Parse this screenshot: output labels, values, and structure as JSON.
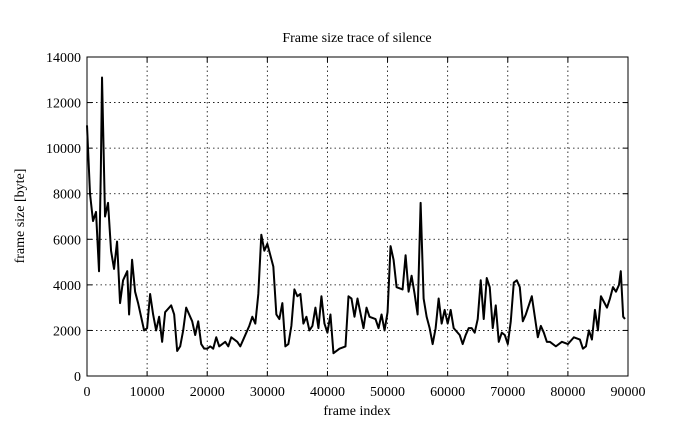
{
  "chart_data": {
    "type": "line",
    "title": "Frame size trace of silence",
    "xlabel": "frame index",
    "ylabel": "frame size [byte]",
    "color": "#000000",
    "grid": true,
    "xlim": [
      0,
      90000
    ],
    "ylim": [
      0,
      14000
    ],
    "xticks": [
      0,
      10000,
      20000,
      30000,
      40000,
      50000,
      60000,
      70000,
      80000,
      90000
    ],
    "yticks": [
      0,
      2000,
      4000,
      6000,
      8000,
      10000,
      12000,
      14000
    ],
    "x": [
      0,
      500,
      1000,
      1500,
      2000,
      2300,
      2500,
      3000,
      3500,
      4000,
      4500,
      5000,
      5500,
      6000,
      6700,
      7000,
      7500,
      8000,
      8500,
      9500,
      10000,
      10500,
      11000,
      11500,
      12000,
      12500,
      13000,
      14000,
      14500,
      15000,
      15500,
      16000,
      16500,
      17000,
      17500,
      18000,
      18500,
      19000,
      19500,
      20000,
      20500,
      21000,
      21500,
      22000,
      23000,
      23500,
      24000,
      25000,
      25500,
      26000,
      27000,
      27500,
      28000,
      28500,
      29000,
      29500,
      30000,
      30500,
      31000,
      31500,
      32000,
      32500,
      33000,
      33500,
      34000,
      34500,
      35000,
      35500,
      36000,
      36500,
      37000,
      37500,
      38000,
      38500,
      39000,
      39500,
      40000,
      40500,
      41000,
      42000,
      43000,
      43500,
      44000,
      44500,
      45000,
      46000,
      46500,
      47000,
      48000,
      48500,
      49000,
      49500,
      50000,
      50500,
      51000,
      51500,
      52500,
      53000,
      53500,
      54000,
      54500,
      55000,
      55500,
      56000,
      56500,
      57000,
      57500,
      58000,
      58500,
      59000,
      59500,
      60000,
      60500,
      61000,
      62000,
      62500,
      63000,
      63500,
      64000,
      64500,
      65000,
      65500,
      66000,
      66500,
      67000,
      67500,
      68000,
      68500,
      69000,
      69500,
      70000,
      70500,
      71000,
      71500,
      72000,
      72500,
      73000,
      73500,
      74000,
      74500,
      75000,
      75500,
      76000,
      76500,
      77000,
      78000,
      79000,
      80000,
      81000,
      82000,
      82500,
      83000,
      83500,
      84000,
      84500,
      85000,
      85500,
      86500,
      87000,
      87500,
      88000,
      88500,
      88800,
      89200,
      89500
    ],
    "values": [
      11000,
      8000,
      6800,
      7200,
      4600,
      9000,
      13100,
      7000,
      7600,
      5500,
      4700,
      5900,
      3200,
      4200,
      4600,
      2700,
      5100,
      3700,
      3200,
      2000,
      2100,
      3600,
      2700,
      2000,
      2600,
      1500,
      2800,
      3100,
      2700,
      1100,
      1300,
      2000,
      3000,
      2700,
      2400,
      1800,
      2400,
      1400,
      1200,
      1200,
      1300,
      1200,
      1700,
      1300,
      1500,
      1300,
      1700,
      1500,
      1300,
      1600,
      2200,
      2600,
      2300,
      3600,
      6200,
      5500,
      5800,
      5300,
      4800,
      2700,
      2500,
      3200,
      1300,
      1400,
      2200,
      3800,
      3500,
      3600,
      2300,
      2600,
      2000,
      2200,
      3000,
      2100,
      3500,
      2300,
      1900,
      2700,
      1000,
      1200,
      1300,
      3500,
      3400,
      2600,
      3400,
      2100,
      3000,
      2600,
      2500,
      2100,
      2700,
      2000,
      2800,
      5700,
      5100,
      3900,
      3800,
      5300,
      3700,
      4400,
      3600,
      2700,
      7600,
      3400,
      2600,
      2100,
      1400,
      2100,
      3400,
      2300,
      2900,
      2300,
      2900,
      2100,
      1800,
      1400,
      1800,
      2100,
      2100,
      1900,
      2500,
      4200,
      2500,
      4300,
      3900,
      2100,
      3100,
      1500,
      1900,
      1800,
      1400,
      2400,
      4100,
      4200,
      3900,
      2400,
      2700,
      3100,
      3500,
      2600,
      1700,
      2200,
      1900,
      1500,
      1500,
      1300,
      1500,
      1400,
      1700,
      1600,
      1200,
      1300,
      2000,
      1600,
      2900,
      2000,
      3500,
      3000,
      3400,
      3900,
      3700,
      4000,
      4600,
      2600,
      2500
    ]
  }
}
